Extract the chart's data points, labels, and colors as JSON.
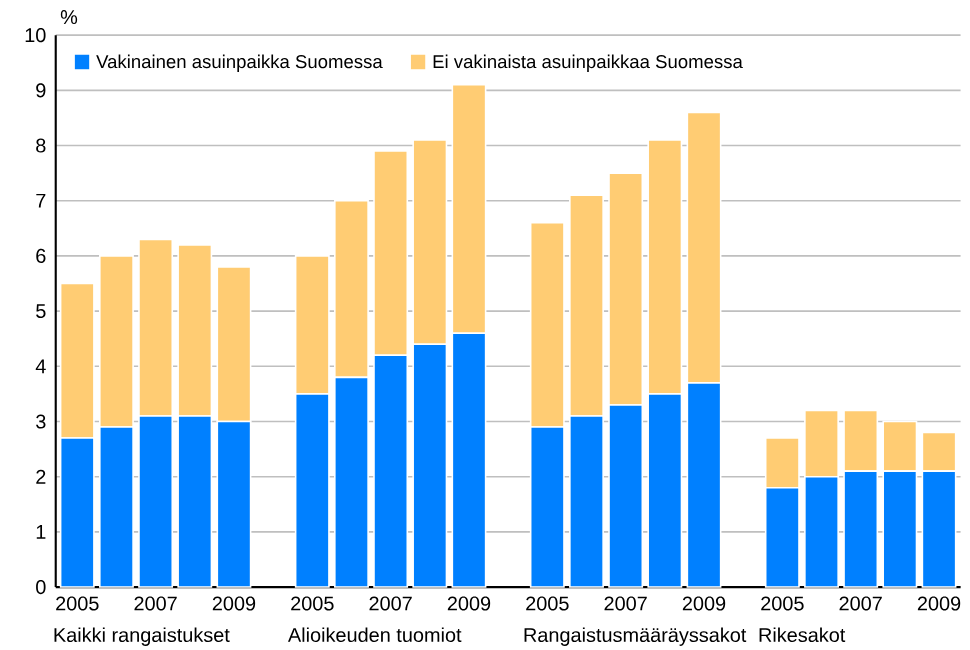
{
  "chart_data": {
    "type": "bar",
    "stacked": true,
    "ylabel": "%",
    "categories": [
      "2005",
      null,
      "2007",
      null,
      "2009",
      null,
      "2005",
      null,
      "2007",
      null,
      "2009",
      null,
      "2005",
      null,
      "2007",
      null,
      "2009",
      null,
      "2005",
      null,
      "2007",
      null,
      "2009"
    ],
    "series": [
      {
        "name": "Vakinainen asuinpaikka Suomessa",
        "color": "#0080ff",
        "values": [
          2.7,
          2.9,
          3.1,
          3.1,
          3.0,
          null,
          3.5,
          3.8,
          4.2,
          4.4,
          4.6,
          null,
          2.9,
          3.1,
          3.3,
          3.5,
          3.7,
          null,
          1.8,
          2.0,
          2.1,
          2.1,
          2.1
        ]
      },
      {
        "name": "Ei vakinaista asuinpaikkaa Suomessa",
        "color": "#ffcc73",
        "values": [
          2.8,
          3.1,
          3.2,
          3.1,
          2.8,
          null,
          2.5,
          3.2,
          3.7,
          3.7,
          4.5,
          null,
          3.7,
          4.0,
          4.2,
          4.6,
          4.9,
          null,
          0.9,
          1.2,
          1.1,
          0.9,
          0.7
        ]
      }
    ],
    "ylim": [
      0,
      10
    ],
    "yticks": [
      0,
      1,
      2,
      3,
      4,
      5,
      6,
      7,
      8,
      9,
      10
    ],
    "grid": "y",
    "legend": "top left",
    "annotations": [
      "Kaikki rangaistukset",
      "Alioikeuden tuomiot",
      "Rangaistusmääräyssakot",
      "Rikesakot"
    ]
  }
}
